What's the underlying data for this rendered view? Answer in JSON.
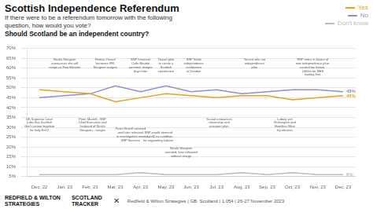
{
  "chart_data": {
    "type": "line",
    "title": "Scottish Independence Referendum",
    "subtitle": [
      "If there were to be a referendum tomorrow with the following",
      "question, how would you vote?"
    ],
    "question": "Should Scotland be an independent country?",
    "categories": [
      "Dec, 22",
      "Jan, 23",
      "Feb, 23",
      "Mar, 23",
      "Apr, 23",
      "May, 23",
      "Jun, 23",
      "Jul, 23",
      "Aug, 23",
      "Sep, 23",
      "Oct, 23",
      "Nov, 23",
      "Dec, 23"
    ],
    "series": [
      {
        "name": "Yes",
        "color": "#E8A020",
        "values": [
          49,
          48,
          47,
          43,
          45,
          47,
          46,
          45,
          46,
          46,
          44,
          45,
          46
        ],
        "value_labels": [
          null,
          null,
          null,
          null,
          null,
          null,
          null,
          null,
          null,
          null,
          null,
          null,
          "46%"
        ]
      },
      {
        "name": "No",
        "color": "#9090CC",
        "values": [
          45,
          46,
          47,
          51,
          48,
          51,
          48,
          49,
          47,
          48,
          49,
          49,
          48
        ],
        "value_labels": [
          null,
          null,
          null,
          null,
          null,
          null,
          null,
          null,
          null,
          null,
          null,
          null,
          "48%"
        ]
      },
      {
        "name": "Don't know",
        "color": "#BBBBBB",
        "values": [
          6,
          6,
          6,
          6,
          7,
          6,
          6,
          6,
          7,
          6,
          7,
          6,
          6
        ],
        "value_labels": [
          null,
          null,
          null,
          null,
          null,
          null,
          null,
          null,
          null,
          null,
          null,
          null,
          "6%"
        ]
      }
    ],
    "ylim": [
      5,
      70
    ],
    "yticks": [
      {
        "value": 5,
        "label": "5%"
      },
      {
        "value": 10,
        "label": "10%"
      },
      {
        "value": 15,
        "label": "15%"
      },
      {
        "value": 20,
        "label": "20%"
      },
      {
        "value": 25,
        "label": "25%"
      },
      {
        "value": 30,
        "label": "30%"
      },
      {
        "value": 35,
        "label": "35%"
      },
      {
        "value": 40,
        "label": "40%"
      },
      {
        "value": 45,
        "label": "45%"
      },
      {
        "value": 50,
        "label": "50%"
      },
      {
        "value": 55,
        "label": "55%"
      },
      {
        "value": 60,
        "label": "60%"
      },
      {
        "value": 65,
        "label": "65%"
      },
      {
        "value": 70,
        "label": "70%"
      }
    ],
    "grid": true,
    "legend": "top-right",
    "annotations": [
      {
        "x": 1.0,
        "y": 65,
        "text": "Nicola Sturgeon\nannounces she will\nresign as First Minister"
      },
      {
        "x": 2.6,
        "y": 65,
        "text": "Humza Yousaf\nbecomes FM;\nSturgeon resigns"
      },
      {
        "x": 4.0,
        "y": 65,
        "text": "SNP treasurer\nColin Beattie\narrested; resigns\ndays later"
      },
      {
        "x": 5.0,
        "y": 65,
        "text": "Yousaf plan\nto create a\nScottish\nconstitution"
      },
      {
        "x": 6.1,
        "y": 65,
        "text": "SNP holds\nindependence\nconference\nin Dundee"
      },
      {
        "x": 8.5,
        "y": 65,
        "text": "Yousaf sets out\nindependence\nplan"
      },
      {
        "x": 10.8,
        "y": 65,
        "text": "SNP votes in favour of\nnew independence plan;\ncouncil tax freeze;\n£300m for NHS\nwaiting lists"
      },
      {
        "x": 0.0,
        "y": 35,
        "text": "UK Supreme Court\nrules that Scottish\nGov't cannot legislate\nfor Indy Ref 2"
      },
      {
        "x": 2.1,
        "y": 35,
        "text": "Peter Murrell - SNP\nChief Executive and\nhusband of Nicola\nSturgeon - resigns"
      },
      {
        "x": 3.6,
        "y": 30,
        "text": "Peter Murrell arrested\nand later released\nin investigation over\nSNP finances"
      },
      {
        "x": 4.7,
        "y": 28,
        "text": "SNP would demand\nindyref2 as condition\nfor supporting Labour"
      },
      {
        "x": 5.6,
        "y": 20,
        "text": "Nicola Sturgeon\narrested; later released\nwithout charge"
      },
      {
        "x": 7.1,
        "y": 35,
        "text": "Yousaf announces\ncitizenship and\npassport plan"
      },
      {
        "x": 9.7,
        "y": 35,
        "text": "Labour win\nRutherglen and\nHamilton West\nby-election"
      }
    ],
    "footer": {
      "left": [
        "REDFIELD & WILTON",
        "STRATEGIES"
      ],
      "center": [
        "SCOTLAND",
        "TRACKER"
      ],
      "icon": "✕",
      "right": "Redfield & Wilton Strategies | GB: Scotland | 1,054 | 26-27 November 2023"
    }
  }
}
